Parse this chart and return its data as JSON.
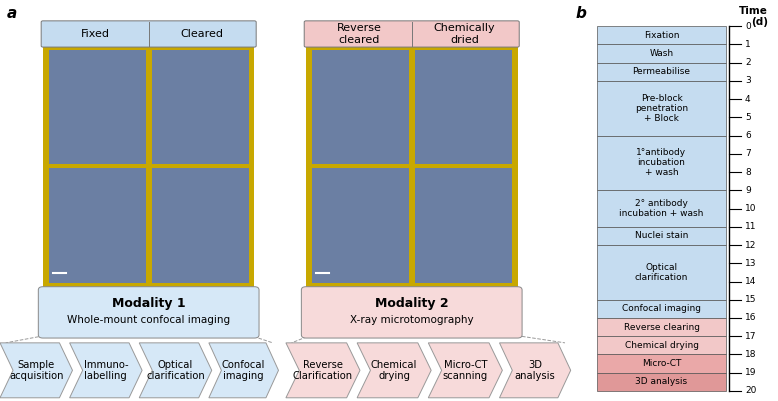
{
  "fig_width": 7.78,
  "fig_height": 4.01,
  "dpi": 100,
  "panel_a_label": "a",
  "panel_b_label": "b",
  "modality1_title": "Modality 1",
  "modality1_sub": "Whole-mount confocal imaging",
  "modality2_title": "Modality 2",
  "modality2_sub": "X-ray microtomography",
  "fixed_label": "Fixed",
  "cleared_label": "Cleared",
  "reverse_cleared_label": "Reverse\ncleared",
  "chemically_dried_label": "Chemically\ndried",
  "blue_header": "#C5DCF0",
  "pink_header": "#F2C8C8",
  "blue_box_bg": "#D6E8F7",
  "pink_box_bg": "#F7DADA",
  "yellow_border": "#C8A800",
  "image_bg": "#6B7FA3",
  "timeline_steps": [
    {
      "label": "Fixation",
      "color": "#C5DCF0",
      "start": 0,
      "end": 1
    },
    {
      "label": "Wash",
      "color": "#C5DCF0",
      "start": 1,
      "end": 2
    },
    {
      "label": "Permeabilise",
      "color": "#C5DCF0",
      "start": 2,
      "end": 3
    },
    {
      "label": "Pre-block\npenetration\n+ Block",
      "color": "#C5DCF0",
      "start": 3,
      "end": 6
    },
    {
      "label": "1°antibody\nincubation\n+ wash",
      "color": "#C5DCF0",
      "start": 6,
      "end": 9
    },
    {
      "label": "2° antibody\nincubation + wash",
      "color": "#C5DCF0",
      "start": 9,
      "end": 11
    },
    {
      "label": "Nuclei stain",
      "color": "#C5DCF0",
      "start": 11,
      "end": 12
    },
    {
      "label": "Optical\nclarification",
      "color": "#C5DCF0",
      "start": 12,
      "end": 15
    },
    {
      "label": "Confocal imaging",
      "color": "#C5DCF0",
      "start": 15,
      "end": 16
    },
    {
      "label": "Reverse clearing",
      "color": "#F2C8C8",
      "start": 16,
      "end": 17
    },
    {
      "label": "Chemical drying",
      "color": "#F2C8C8",
      "start": 17,
      "end": 18
    },
    {
      "label": "Micro-CT",
      "color": "#EAA8A8",
      "start": 18,
      "end": 19
    },
    {
      "label": "3D analysis",
      "color": "#E09898",
      "start": 19,
      "end": 20
    }
  ],
  "modality1_steps": [
    "Sample\nacquisition",
    "Immuno-\nlabelling",
    "Optical\nclarification",
    "Confocal\nimaging"
  ],
  "modality2_steps": [
    "Reverse\nClarification",
    "Chemical\ndrying",
    "Micro-CT\nscanning",
    "3D\nanalysis"
  ],
  "time_label": "Time\n(d)"
}
